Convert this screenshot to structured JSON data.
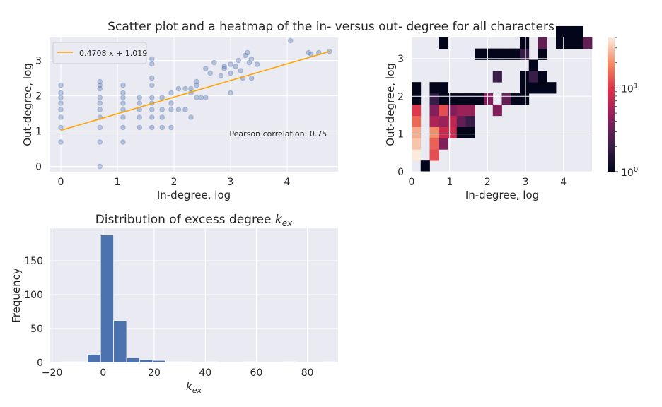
{
  "figure": {
    "title": "Scatter plot and a heatmap of the in- versus out- degree for all characters"
  },
  "chart_data": [
    {
      "type": "scatter",
      "xlabel": "In-degree, log",
      "ylabel": "Out-degree, log",
      "xlim": [
        -0.2,
        4.9
      ],
      "ylim": [
        -0.15,
        3.65
      ],
      "xticks": [
        0,
        1,
        2,
        3,
        4
      ],
      "yticks": [
        0,
        1,
        2,
        3
      ],
      "grid": true,
      "legend_position": "top-left",
      "fit_line": {
        "label": "0.4708 x + 1.019",
        "slope": 0.4708,
        "intercept": 1.019,
        "x_range": [
          0,
          4.75
        ],
        "color": "#ffa500"
      },
      "annotation": {
        "text": "Pearson correlation: 0.75",
        "x": 2.98,
        "y": 0.85
      },
      "point_color": "#4c72b0",
      "points": [
        [
          0,
          0.69
        ],
        [
          0,
          1.1
        ],
        [
          0,
          1.39
        ],
        [
          0,
          1.61
        ],
        [
          0,
          1.79
        ],
        [
          0,
          1.95
        ],
        [
          0,
          2.08
        ],
        [
          0,
          2.3
        ],
        [
          0.69,
          0
        ],
        [
          0.69,
          0.69
        ],
        [
          0.69,
          1.1
        ],
        [
          0.69,
          1.39
        ],
        [
          0.69,
          1.61
        ],
        [
          0.69,
          1.79
        ],
        [
          0.69,
          1.95
        ],
        [
          0.69,
          2.2
        ],
        [
          0.69,
          2.3
        ],
        [
          0.69,
          2.4
        ],
        [
          1.1,
          0.69
        ],
        [
          1.1,
          1.1
        ],
        [
          1.1,
          1.39
        ],
        [
          1.1,
          1.61
        ],
        [
          1.1,
          1.79
        ],
        [
          1.1,
          1.95
        ],
        [
          1.1,
          2.08
        ],
        [
          1.1,
          2.3
        ],
        [
          1.39,
          1.1
        ],
        [
          1.39,
          1.39
        ],
        [
          1.39,
          1.61
        ],
        [
          1.39,
          1.79
        ],
        [
          1.39,
          1.95
        ],
        [
          1.61,
          1.1
        ],
        [
          1.61,
          1.39
        ],
        [
          1.61,
          1.61
        ],
        [
          1.61,
          1.79
        ],
        [
          1.61,
          1.95
        ],
        [
          1.61,
          2.3
        ],
        [
          1.61,
          2.5
        ],
        [
          1.61,
          2.9
        ],
        [
          1.61,
          3.04
        ],
        [
          1.79,
          1.1
        ],
        [
          1.79,
          1.39
        ],
        [
          1.79,
          1.61
        ],
        [
          1.79,
          1.95
        ],
        [
          1.95,
          1.1
        ],
        [
          1.95,
          1.61
        ],
        [
          1.95,
          1.79
        ],
        [
          1.95,
          2.08
        ],
        [
          2.08,
          1.61
        ],
        [
          2.08,
          2.2
        ],
        [
          2.2,
          1.61
        ],
        [
          2.2,
          2.2
        ],
        [
          2.3,
          1.39
        ],
        [
          2.3,
          2.08
        ],
        [
          2.3,
          2.2
        ],
        [
          2.4,
          2.3
        ],
        [
          2.4,
          2.4
        ],
        [
          2.4,
          1.95
        ],
        [
          2.48,
          1.95
        ],
        [
          2.56,
          1.95
        ],
        [
          2.56,
          2.77
        ],
        [
          2.64,
          2.64
        ],
        [
          2.71,
          2.94
        ],
        [
          2.83,
          2.56
        ],
        [
          2.89,
          2.77
        ],
        [
          2.89,
          2.83
        ],
        [
          3.0,
          2.08
        ],
        [
          3.0,
          2.64
        ],
        [
          3.0,
          2.89
        ],
        [
          3.09,
          2.83
        ],
        [
          3.14,
          3.0
        ],
        [
          3.18,
          2.71
        ],
        [
          3.22,
          2.5
        ],
        [
          3.26,
          3.14
        ],
        [
          3.3,
          3.22
        ],
        [
          3.33,
          2.94
        ],
        [
          3.37,
          3.04
        ],
        [
          3.37,
          2.5
        ],
        [
          3.47,
          2.89
        ],
        [
          4.06,
          3.56
        ],
        [
          4.38,
          3.22
        ],
        [
          4.42,
          3.18
        ],
        [
          4.56,
          3.22
        ],
        [
          4.75,
          3.26
        ]
      ]
    },
    {
      "type": "heatmap",
      "xlabel": "In-degree, log",
      "ylabel": "Out-degree, log",
      "xlim": [
        0,
        4.75
      ],
      "ylim": [
        0,
        3.56
      ],
      "xticks": [
        0,
        1,
        2,
        3,
        4
      ],
      "yticks": [
        0,
        1,
        2,
        3
      ],
      "grid": true,
      "bin_width": 0.2375,
      "bin_height": 0.297,
      "colorbar": {
        "scale": "log",
        "ticks": [
          "10^0",
          "10^1"
        ],
        "vmin": 1,
        "vmax": 40
      },
      "cells": [
        [
          1,
          0,
          1
        ],
        [
          0,
          1,
          40
        ],
        [
          2,
          1,
          12
        ],
        [
          0,
          2,
          30
        ],
        [
          2,
          2,
          14
        ],
        [
          3,
          2,
          4
        ],
        [
          0,
          3,
          25
        ],
        [
          2,
          3,
          20
        ],
        [
          3,
          3,
          8
        ],
        [
          4,
          3,
          8
        ],
        [
          5,
          3,
          1
        ],
        [
          6,
          3,
          1
        ],
        [
          0,
          4,
          15
        ],
        [
          2,
          4,
          6
        ],
        [
          3,
          4,
          5
        ],
        [
          4,
          4,
          7
        ],
        [
          5,
          4,
          3
        ],
        [
          6,
          4,
          2
        ],
        [
          0,
          5,
          10
        ],
        [
          2,
          5,
          4
        ],
        [
          3,
          5,
          12
        ],
        [
          4,
          5,
          4
        ],
        [
          5,
          5,
          5
        ],
        [
          6,
          5,
          5
        ],
        [
          9,
          5,
          4
        ],
        [
          0,
          6,
          1
        ],
        [
          2,
          6,
          2
        ],
        [
          3,
          6,
          1
        ],
        [
          4,
          6,
          1
        ],
        [
          5,
          6,
          1
        ],
        [
          6,
          6,
          1
        ],
        [
          7,
          6,
          1
        ],
        [
          8,
          6,
          4
        ],
        [
          10,
          6,
          3
        ],
        [
          11,
          6,
          1
        ],
        [
          12,
          6,
          1
        ],
        [
          0,
          7,
          1
        ],
        [
          2,
          7,
          1
        ],
        [
          3,
          7,
          1
        ],
        [
          12,
          7,
          1
        ],
        [
          13,
          7,
          1
        ],
        [
          14,
          7,
          1
        ],
        [
          15,
          7,
          1
        ],
        [
          9,
          8,
          2
        ],
        [
          12,
          8,
          1
        ],
        [
          13,
          8,
          2
        ],
        [
          14,
          8,
          1
        ],
        [
          13,
          9,
          1
        ],
        [
          7,
          10,
          1
        ],
        [
          8,
          10,
          1
        ],
        [
          9,
          10,
          1
        ],
        [
          10,
          10,
          1
        ],
        [
          11,
          10,
          1
        ],
        [
          12,
          10,
          2
        ],
        [
          14,
          10,
          1
        ],
        [
          3,
          11,
          1
        ],
        [
          12,
          11,
          1
        ],
        [
          14,
          11,
          3
        ],
        [
          16,
          11,
          1
        ],
        [
          17,
          11,
          1
        ],
        [
          18,
          11,
          1
        ],
        [
          19,
          11,
          3
        ],
        [
          16,
          12,
          1
        ],
        [
          17,
          12,
          1
        ],
        [
          18,
          12,
          1
        ]
      ]
    },
    {
      "type": "bar",
      "title_prefix": "Distribution of excess degree ",
      "title_math": "k",
      "title_sub": "ex",
      "xlabel_math": "k",
      "xlabel_sub": "ex",
      "ylabel": "Frequency",
      "xlim": [
        -21,
        92
      ],
      "ylim": [
        0,
        198
      ],
      "xticks": [
        -20,
        0,
        20,
        40,
        60,
        80
      ],
      "yticks": [
        0,
        50,
        100,
        150
      ],
      "grid": true,
      "bar_color": "#4c72b0",
      "bin_width": 5.1,
      "bins": [
        [
          -16.3,
          1
        ],
        [
          -11.2,
          1
        ],
        [
          -6.1,
          12
        ],
        [
          -1.0,
          188
        ],
        [
          4.1,
          62
        ],
        [
          9.2,
          7
        ],
        [
          14.3,
          4
        ],
        [
          19.4,
          3
        ],
        [
          24.5,
          1
        ],
        [
          29.6,
          1
        ],
        [
          34.7,
          0
        ],
        [
          39.8,
          1
        ],
        [
          44.9,
          0
        ],
        [
          50.0,
          0
        ],
        [
          55.1,
          1
        ],
        [
          60.2,
          0
        ],
        [
          65.3,
          0
        ],
        [
          70.4,
          1
        ],
        [
          75.5,
          0
        ],
        [
          80.6,
          0
        ],
        [
          85.7,
          1
        ]
      ]
    }
  ]
}
